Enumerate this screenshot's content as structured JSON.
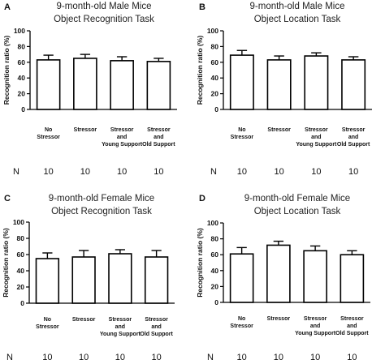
{
  "chart_data": [
    {
      "type": "bar",
      "panel_letter": "A",
      "title_lines": [
        "9-month-old Male Mice",
        "Object Recognition Task"
      ],
      "ylabel": "Recognition ratio (%)",
      "ylim": [
        0,
        100
      ],
      "yticks": [
        0,
        20,
        40,
        60,
        80,
        100
      ],
      "categories": [
        [
          "No",
          "Stressor"
        ],
        [
          "Stressor"
        ],
        [
          "Stressor",
          "and",
          "Young Support"
        ],
        [
          "Stressor",
          "and",
          "Old Support"
        ]
      ],
      "values": [
        63,
        65,
        62,
        61
      ],
      "errors": [
        6,
        5,
        5,
        4
      ],
      "n_label": "N",
      "n_values": [
        "10",
        "10",
        "10",
        "10"
      ]
    },
    {
      "type": "bar",
      "panel_letter": "B",
      "title_lines": [
        "9-month-old Male Mice",
        "Object Location Task"
      ],
      "ylabel": "Recognition ratio (%)",
      "ylim": [
        0,
        100
      ],
      "yticks": [
        0,
        20,
        40,
        60,
        80,
        100
      ],
      "categories": [
        [
          "No",
          "Stressor"
        ],
        [
          "Stressor"
        ],
        [
          "Stressor",
          "and",
          "Young Support"
        ],
        [
          "Stressor",
          "and",
          "Old Support"
        ]
      ],
      "values": [
        69,
        63,
        68,
        63
      ],
      "errors": [
        6,
        5,
        4,
        4
      ],
      "n_label": "N",
      "n_values": [
        "10",
        "10",
        "10",
        "10"
      ]
    },
    {
      "type": "bar",
      "panel_letter": "C",
      "title_lines": [
        "9-month-old Female Mice",
        "Object Recognition Task"
      ],
      "ylabel": "Recognition ratio (%)",
      "ylim": [
        0,
        100
      ],
      "yticks": [
        0,
        20,
        40,
        60,
        80,
        100
      ],
      "categories": [
        [
          "No",
          "Stressor"
        ],
        [
          "Stressor"
        ],
        [
          "Stressor",
          "and",
          "Young Support"
        ],
        [
          "Stressor",
          "and",
          "Old Support"
        ]
      ],
      "values": [
        55,
        57,
        61,
        57
      ],
      "errors": [
        7,
        8,
        5,
        8
      ],
      "n_label": "N",
      "n_values": [
        "10",
        "10",
        "10",
        "10"
      ]
    },
    {
      "type": "bar",
      "panel_letter": "D",
      "title_lines": [
        "9-month-old Female Mice",
        "Object Location Task"
      ],
      "ylabel": "Recognition ratio (%)",
      "ylim": [
        0,
        100
      ],
      "yticks": [
        0,
        20,
        40,
        60,
        80,
        100
      ],
      "categories": [
        [
          "No",
          "Stressor"
        ],
        [
          "Stressor"
        ],
        [
          "Stressor",
          "and",
          "Young Support"
        ],
        [
          "Stressor",
          "and",
          "Old Support"
        ]
      ],
      "values": [
        61,
        72,
        65,
        60
      ],
      "errors": [
        8,
        5,
        6,
        5
      ],
      "n_label": "N",
      "n_values": [
        "10",
        "10",
        "10",
        "10"
      ]
    }
  ]
}
